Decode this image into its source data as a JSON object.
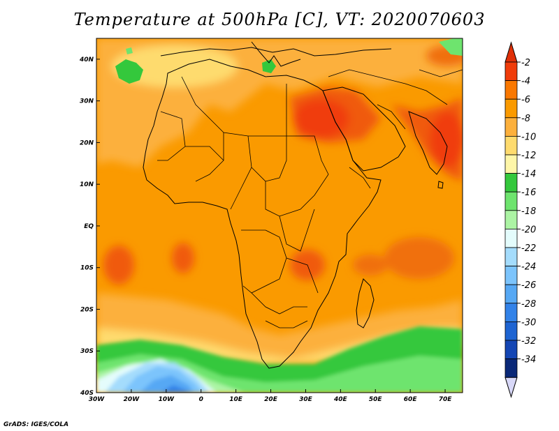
{
  "title": "Temperature at 500hPa [C], VT: 2020070603",
  "credit": "GrADS: IGES/COLA",
  "map": {
    "region": "Africa",
    "lon_range": [
      -30,
      75
    ],
    "lat_range": [
      -40,
      45
    ],
    "lon_ticks": [
      "30W",
      "20W",
      "10W",
      "0",
      "10E",
      "20E",
      "30E",
      "40E",
      "50E",
      "60E",
      "70E"
    ],
    "lat_ticks": [
      "40N",
      "30N",
      "20N",
      "10N",
      "EQ",
      "10S",
      "20S",
      "30S",
      "40S"
    ]
  },
  "colorbar": {
    "labels": [
      "-2",
      "-4",
      "-6",
      "-8",
      "-10",
      "-12",
      "-14",
      "-16",
      "-18",
      "-20",
      "-22",
      "-24",
      "-26",
      "-28",
      "-30",
      "-32",
      "-34"
    ],
    "colors": [
      "#f03c0a",
      "#fa7800",
      "#fa9a00",
      "#fcb03c",
      "#fedb6e",
      "#fef6a8",
      "#34c83c",
      "#6ee46e",
      "#acf4a4",
      "#e4fcfc",
      "#a4dcfc",
      "#7cc4fc",
      "#56a8f4",
      "#3282e8",
      "#1e64d2",
      "#1446b4",
      "#0a2878"
    ],
    "top_arrow_color": "#e03008",
    "bottom_arrow_color": "#d8d8f8"
  }
}
